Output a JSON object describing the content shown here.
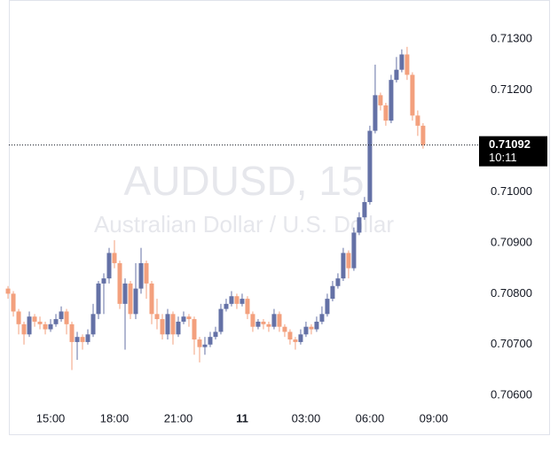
{
  "chart_data": {
    "type": "candlestick",
    "title": "AUDUSD, 15",
    "subtitle": "Australian Dollar / U.S. Dollar",
    "x": [
      13,
      13.25,
      13.5,
      13.75,
      14,
      14.25,
      14.5,
      14.75,
      15,
      15.25,
      15.5,
      15.75,
      16,
      16.25,
      16.5,
      16.75,
      17,
      17.25,
      17.5,
      17.75,
      18,
      18.25,
      18.5,
      18.75,
      19,
      19.25,
      19.5,
      19.75,
      20,
      20.25,
      20.5,
      20.75,
      21,
      21.25,
      21.5,
      21.75,
      22,
      22.25,
      22.5,
      22.75,
      23,
      23.25,
      23.5,
      23.75,
      24,
      24.25,
      24.5,
      24.75,
      25,
      25.25,
      25.5,
      25.75,
      26,
      26.25,
      26.5,
      26.75,
      27,
      27.25,
      27.5,
      27.75,
      28,
      28.25,
      28.5,
      28.75,
      29,
      29.25,
      29.5,
      29.75,
      30,
      30.25,
      30.5,
      30.75,
      31,
      31.25,
      31.5,
      31.75,
      32,
      32.25,
      32.5
    ],
    "open": [
      0.7081,
      0.708,
      0.70765,
      0.7074,
      0.7072,
      0.70755,
      0.70745,
      0.7074,
      0.7073,
      0.7074,
      0.7075,
      0.70765,
      0.7074,
      0.70705,
      0.70715,
      0.70705,
      0.7072,
      0.7076,
      0.7082,
      0.7083,
      0.7088,
      0.7086,
      0.7078,
      0.7082,
      0.7076,
      0.7081,
      0.7086,
      0.7082,
      0.7076,
      0.7075,
      0.7072,
      0.7076,
      0.7072,
      0.70745,
      0.70755,
      0.7075,
      0.7071,
      0.70695,
      0.707,
      0.70715,
      0.70725,
      0.7077,
      0.7078,
      0.70795,
      0.7078,
      0.7079,
      0.7076,
      0.70735,
      0.70745,
      0.7074,
      0.70735,
      0.7076,
      0.70735,
      0.70725,
      0.7071,
      0.70705,
      0.7072,
      0.70735,
      0.7073,
      0.70745,
      0.7076,
      0.7079,
      0.70815,
      0.7083,
      0.7088,
      0.7085,
      0.7092,
      0.7095,
      0.7098,
      0.7112,
      0.7119,
      0.7117,
      0.7114,
      0.7122,
      0.7124,
      0.7127,
      0.7123,
      0.7115,
      0.7113
    ],
    "high": [
      0.70815,
      0.70805,
      0.7077,
      0.70745,
      0.70765,
      0.7076,
      0.70755,
      0.70745,
      0.7075,
      0.7076,
      0.70775,
      0.7077,
      0.70745,
      0.70725,
      0.7072,
      0.7073,
      0.7078,
      0.70825,
      0.7084,
      0.7089,
      0.70905,
      0.70865,
      0.7083,
      0.70825,
      0.7086,
      0.7089,
      0.70865,
      0.70825,
      0.7079,
      0.7076,
      0.7077,
      0.70765,
      0.70755,
      0.70765,
      0.7076,
      0.70755,
      0.70715,
      0.70715,
      0.70725,
      0.70735,
      0.7078,
      0.7079,
      0.70805,
      0.708,
      0.708,
      0.70795,
      0.70765,
      0.7075,
      0.7075,
      0.70745,
      0.7077,
      0.70765,
      0.7074,
      0.7073,
      0.70715,
      0.7073,
      0.70745,
      0.7074,
      0.70755,
      0.70775,
      0.708,
      0.70825,
      0.7084,
      0.7089,
      0.70885,
      0.7093,
      0.7096,
      0.7099,
      0.7113,
      0.7125,
      0.71195,
      0.71175,
      0.7123,
      0.71265,
      0.7128,
      0.71285,
      0.71235,
      0.7116,
      0.71135
    ],
    "low": [
      0.7079,
      0.70755,
      0.7072,
      0.707,
      0.70715,
      0.70735,
      0.7073,
      0.7072,
      0.70725,
      0.70735,
      0.70745,
      0.7072,
      0.7065,
      0.7067,
      0.7069,
      0.707,
      0.70715,
      0.7075,
      0.7076,
      0.7082,
      0.7085,
      0.7077,
      0.7069,
      0.7075,
      0.7075,
      0.708,
      0.7079,
      0.7074,
      0.7073,
      0.7071,
      0.7071,
      0.707,
      0.70715,
      0.7074,
      0.70735,
      0.7068,
      0.70665,
      0.7068,
      0.70695,
      0.7071,
      0.7072,
      0.70765,
      0.70775,
      0.7077,
      0.70775,
      0.7075,
      0.70725,
      0.7073,
      0.7073,
      0.70725,
      0.7073,
      0.70725,
      0.70715,
      0.707,
      0.7069,
      0.707,
      0.70715,
      0.7072,
      0.70725,
      0.7074,
      0.70755,
      0.70785,
      0.7081,
      0.70825,
      0.7083,
      0.70845,
      0.70915,
      0.70945,
      0.70975,
      0.71115,
      0.7116,
      0.7113,
      0.71135,
      0.71215,
      0.71235,
      0.7122,
      0.7114,
      0.7111,
      0.71085
    ],
    "close": [
      0.708,
      0.70765,
      0.7074,
      0.7072,
      0.70755,
      0.70745,
      0.7074,
      0.7073,
      0.7074,
      0.7075,
      0.70765,
      0.7074,
      0.70705,
      0.70715,
      0.70705,
      0.7072,
      0.7076,
      0.7082,
      0.7083,
      0.7088,
      0.7086,
      0.7078,
      0.7082,
      0.7076,
      0.7081,
      0.7086,
      0.7082,
      0.7076,
      0.7075,
      0.7072,
      0.7076,
      0.7072,
      0.70745,
      0.70755,
      0.7075,
      0.7071,
      0.70695,
      0.707,
      0.70715,
      0.70725,
      0.7077,
      0.7078,
      0.70795,
      0.7078,
      0.7079,
      0.7076,
      0.70735,
      0.70745,
      0.7074,
      0.70735,
      0.7076,
      0.70735,
      0.70725,
      0.7071,
      0.70705,
      0.7072,
      0.70735,
      0.7073,
      0.70745,
      0.7076,
      0.7079,
      0.70815,
      0.7083,
      0.7088,
      0.7085,
      0.7092,
      0.7095,
      0.7098,
      0.7112,
      0.7119,
      0.7117,
      0.7114,
      0.7122,
      0.7124,
      0.7127,
      0.7123,
      0.7115,
      0.7113,
      0.71092
    ],
    "up_color": "#6471a6",
    "down_color": "#f3a07d",
    "last_price": 0.71092,
    "countdown": "10:11",
    "xlim": [
      13.04,
      35.13
    ],
    "xticks": [
      {
        "value": 15,
        "label": "15:00"
      },
      {
        "value": 18,
        "label": "18:00"
      },
      {
        "value": 21,
        "label": "21:00"
      },
      {
        "value": 24,
        "label": "11"
      },
      {
        "value": 27,
        "label": "03:00"
      },
      {
        "value": 30,
        "label": "06:00"
      },
      {
        "value": 33,
        "label": "09:00"
      }
    ],
    "ylim": [
      0.70576,
      0.71377
    ],
    "yticks": [
      {
        "value": 0.706,
        "label": "0.70600"
      },
      {
        "value": 0.707,
        "label": "0.70700"
      },
      {
        "value": 0.708,
        "label": "0.70800"
      },
      {
        "value": 0.709,
        "label": "0.70900"
      },
      {
        "value": 0.71,
        "label": "0.71000"
      },
      {
        "value": 0.712,
        "label": "0.71200"
      },
      {
        "value": 0.713,
        "label": "0.71300"
      }
    ]
  }
}
